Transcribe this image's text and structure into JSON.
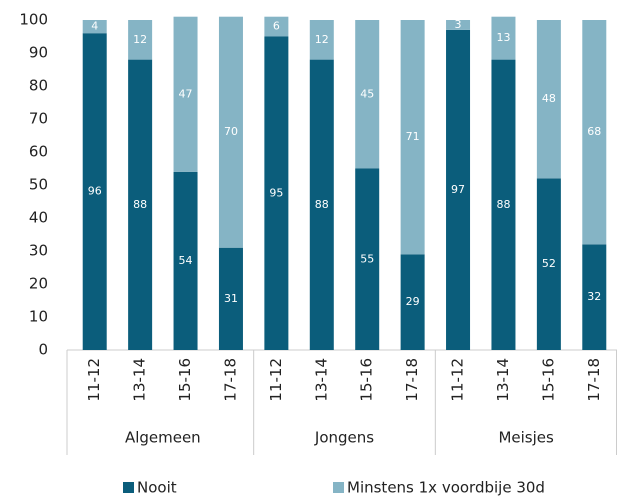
{
  "chart_data": {
    "type": "stacked_bar",
    "categories": [
      "11-12",
      "13-14",
      "15-16",
      "17-18",
      "11-12",
      "13-14",
      "15-16",
      "17-18",
      "11-12",
      "13-14",
      "15-16",
      "17-18"
    ],
    "groups": [
      "Algemeen",
      "Jongens",
      "Meisjes"
    ],
    "series": [
      {
        "name": "Nooit",
        "color": "#0b5d7b",
        "values": [
          96,
          88,
          54,
          31,
          95,
          88,
          55,
          29,
          97,
          88,
          52,
          32
        ]
      },
      {
        "name": "Minstens 1x voordbije 30d",
        "color": "#85b4c5",
        "values": [
          4,
          12,
          47,
          70,
          6,
          12,
          45,
          71,
          3,
          13,
          48,
          68
        ]
      }
    ],
    "ylim": [
      0,
      100
    ],
    "yticks": [
      0,
      10,
      20,
      30,
      40,
      50,
      60,
      70,
      80,
      90,
      100
    ],
    "legend": "bottom"
  }
}
